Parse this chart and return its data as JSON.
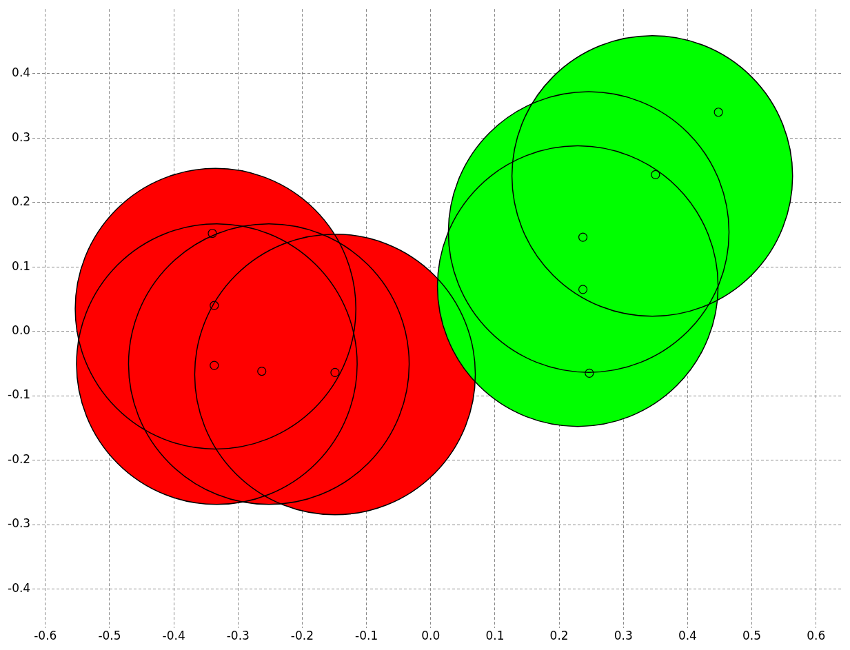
{
  "chart_data": {
    "type": "scatter",
    "series": [
      {
        "type": "bubble",
        "color": "#ff0000",
        "x": [
          -0.335,
          -0.333,
          -0.252,
          -0.149
        ],
        "values": [
          0.035,
          -0.051,
          -0.051,
          -0.067
        ],
        "sizes": [
          1,
          1,
          1,
          1
        ]
      },
      {
        "type": "bubble",
        "color": "#00ff00",
        "x": [
          0.229,
          0.246,
          0.345
        ],
        "values": [
          0.07,
          0.154,
          0.241
        ],
        "sizes": [
          1,
          1,
          1
        ]
      },
      {
        "color": "#000000",
        "x": [
          -0.34,
          -0.337,
          -0.337,
          -0.263,
          -0.149,
          0.237,
          0.237,
          0.247,
          0.35,
          0.448
        ],
        "values": [
          0.152,
          0.04,
          -0.053,
          -0.062,
          -0.064,
          0.146,
          0.065,
          -0.065,
          0.243,
          0.34
        ]
      }
    ],
    "marker": "circle",
    "xlim": [
      -0.62,
      0.64
    ],
    "ylim": [
      -0.46,
      0.5
    ],
    "xticks": [
      -0.6,
      -0.5,
      -0.4,
      -0.3,
      -0.2,
      -0.1,
      {
        "value": 0,
        "label": "0.0"
      },
      0.1,
      0.2,
      0.3,
      0.4,
      0.5,
      0.6
    ],
    "yticks": [
      -0.4,
      -0.3,
      -0.2,
      -0.1,
      {
        "value": 0,
        "label": "0.0"
      },
      0.1,
      0.2,
      0.3,
      0.4
    ],
    "grid": true,
    "legend": false
  }
}
